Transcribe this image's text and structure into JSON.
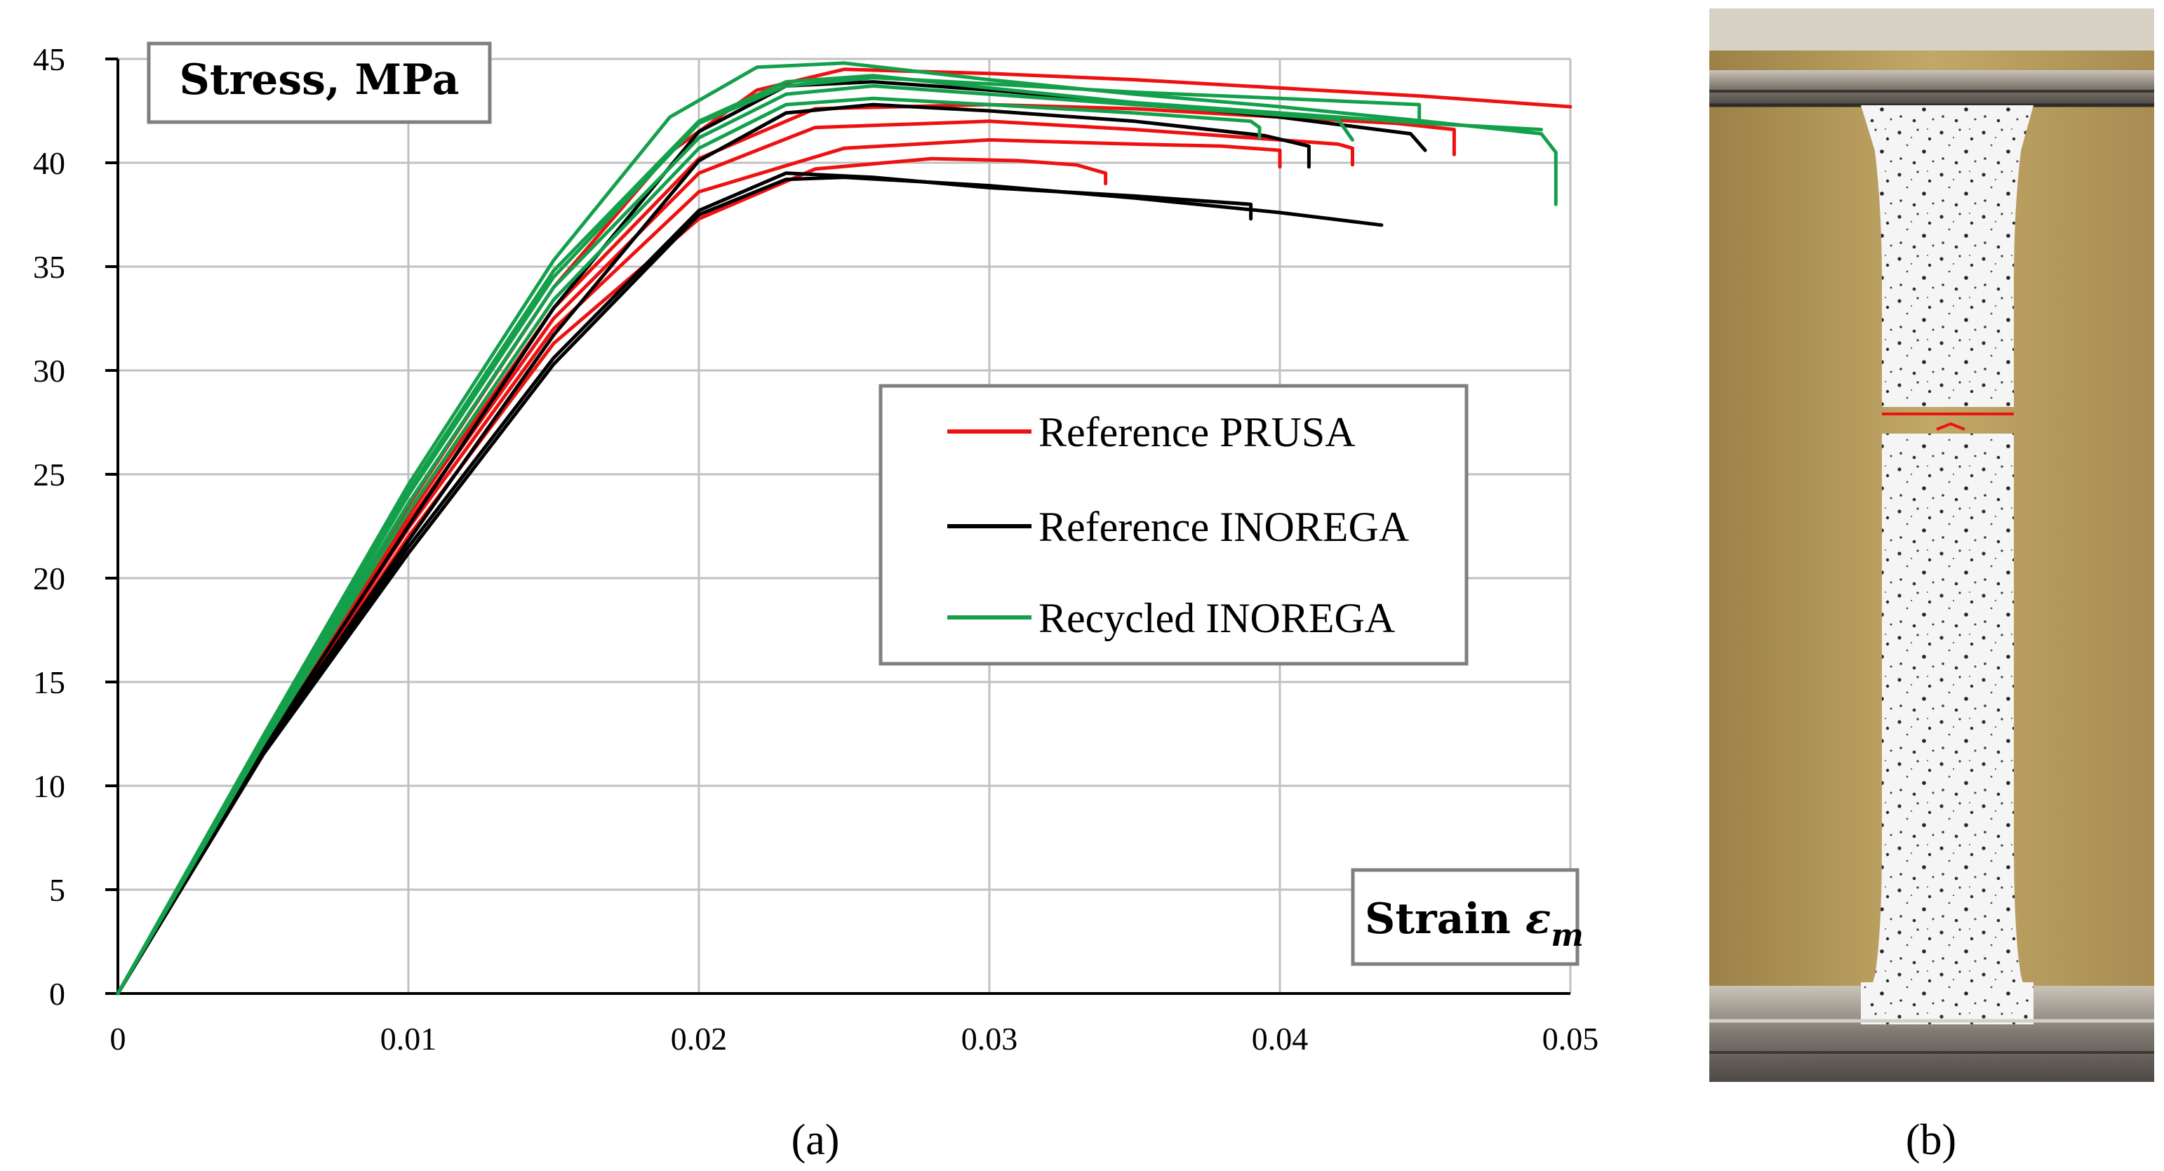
{
  "panel_a_label": "(a)",
  "panel_b_label": "(b)",
  "chart_data": {
    "type": "line",
    "title": "",
    "ylabel": "Stress, MPa",
    "xlabel": "Strain ε_m",
    "xlabel_main": "Strain ",
    "xlabel_symbol": "ε",
    "xlabel_subscript": "m",
    "xlim": [
      0,
      0.05
    ],
    "ylim": [
      0,
      45
    ],
    "xticks": [
      0,
      0.01,
      0.02,
      0.03,
      0.04,
      0.05
    ],
    "xtick_labels": [
      "0",
      "0.01",
      "0.02",
      "0.03",
      "0.04",
      "0.05"
    ],
    "yticks": [
      0,
      5,
      10,
      15,
      20,
      25,
      30,
      35,
      40,
      45
    ],
    "ytick_labels": [
      "0",
      "5",
      "10",
      "15",
      "20",
      "25",
      "30",
      "35",
      "40",
      "45"
    ],
    "grid": true,
    "legend_position": "right-middle",
    "legend": [
      {
        "name": "Reference",
        "name_small_caps": "PRUSA",
        "color": "#ee1111"
      },
      {
        "name": "Reference",
        "name_small_caps": "INOREGA",
        "color": "#000000"
      },
      {
        "name": "Recycled",
        "name_small_caps": "INOREGA",
        "color": "#14a04b"
      }
    ],
    "series": [
      {
        "group": "Reference PRUSA",
        "color": "#ee1111",
        "x": [
          0,
          0.005,
          0.01,
          0.015,
          0.019,
          0.022,
          0.025,
          0.03,
          0.035,
          0.04,
          0.045,
          0.05
        ],
        "y": [
          0,
          12.0,
          23.5,
          34.0,
          40.5,
          43.5,
          44.5,
          44.3,
          44.0,
          43.6,
          43.2,
          42.7
        ]
      },
      {
        "group": "Reference PRUSA",
        "color": "#ee1111",
        "x": [
          0,
          0.005,
          0.01,
          0.015,
          0.02,
          0.024,
          0.03,
          0.035,
          0.04,
          0.044,
          0.046,
          0.046
        ],
        "y": [
          0,
          11.9,
          23.0,
          33.0,
          40.2,
          42.6,
          42.8,
          42.6,
          42.2,
          41.9,
          41.6,
          40.4
        ]
      },
      {
        "group": "Reference PRUSA",
        "color": "#ee1111",
        "x": [
          0,
          0.005,
          0.01,
          0.015,
          0.02,
          0.024,
          0.03,
          0.035,
          0.04,
          0.042,
          0.0425,
          0.0425
        ],
        "y": [
          0,
          11.8,
          22.7,
          32.5,
          39.5,
          41.7,
          42.0,
          41.6,
          41.1,
          40.9,
          40.7,
          39.9
        ]
      },
      {
        "group": "Reference PRUSA",
        "color": "#ee1111",
        "x": [
          0,
          0.005,
          0.01,
          0.015,
          0.02,
          0.025,
          0.03,
          0.035,
          0.038,
          0.04,
          0.04
        ],
        "y": [
          0,
          11.7,
          22.4,
          32.0,
          38.6,
          40.7,
          41.1,
          40.9,
          40.8,
          40.6,
          39.8
        ]
      },
      {
        "group": "Reference PRUSA",
        "color": "#ee1111",
        "x": [
          0,
          0.005,
          0.01,
          0.015,
          0.02,
          0.024,
          0.028,
          0.031,
          0.033,
          0.034,
          0.034
        ],
        "y": [
          0,
          11.6,
          22.0,
          31.3,
          37.3,
          39.7,
          40.2,
          40.1,
          39.9,
          39.5,
          39.0
        ]
      },
      {
        "group": "Reference INOREGA",
        "color": "#000000",
        "x": [
          0,
          0.005,
          0.01,
          0.015,
          0.02,
          0.023,
          0.026,
          0.03,
          0.035,
          0.04,
          0.0445,
          0.045
        ],
        "y": [
          0,
          11.8,
          22.5,
          33.0,
          41.5,
          43.7,
          43.9,
          43.5,
          42.9,
          42.2,
          41.4,
          40.6
        ]
      },
      {
        "group": "Reference INOREGA",
        "color": "#000000",
        "x": [
          0,
          0.005,
          0.01,
          0.015,
          0.02,
          0.023,
          0.026,
          0.03,
          0.035,
          0.0395,
          0.041,
          0.041
        ],
        "y": [
          0,
          11.7,
          21.8,
          31.7,
          40.1,
          42.4,
          42.8,
          42.5,
          42.0,
          41.3,
          40.8,
          39.8
        ]
      },
      {
        "group": "Reference INOREGA",
        "color": "#000000",
        "x": [
          0,
          0.005,
          0.01,
          0.015,
          0.02,
          0.023,
          0.026,
          0.03,
          0.035,
          0.039,
          0.039
        ],
        "y": [
          0,
          11.6,
          21.5,
          30.6,
          37.7,
          39.5,
          39.3,
          38.8,
          38.4,
          38.0,
          37.3
        ]
      },
      {
        "group": "Reference INOREGA",
        "color": "#000000",
        "x": [
          0,
          0.005,
          0.01,
          0.015,
          0.02,
          0.023,
          0.025,
          0.03,
          0.035,
          0.04,
          0.0435
        ],
        "y": [
          0,
          11.5,
          21.2,
          30.3,
          37.5,
          39.2,
          39.3,
          38.9,
          38.3,
          37.6,
          37.0
        ]
      },
      {
        "group": "Recycled INOREGA",
        "color": "#14a04b",
        "x": [
          0,
          0.005,
          0.01,
          0.015,
          0.019,
          0.022,
          0.025,
          0.03,
          0.035,
          0.04,
          0.045,
          0.049,
          0.0495,
          0.0495
        ],
        "y": [
          0,
          12.4,
          24.5,
          35.3,
          42.2,
          44.6,
          44.8,
          44.0,
          43.3,
          42.7,
          42.0,
          41.4,
          40.5,
          38.0
        ]
      },
      {
        "group": "Recycled INOREGA",
        "color": "#14a04b",
        "x": [
          0,
          0.005,
          0.01,
          0.015,
          0.02,
          0.023,
          0.026,
          0.03,
          0.035,
          0.04,
          0.0448,
          0.0448
        ],
        "y": [
          0,
          12.2,
          24.0,
          34.5,
          41.9,
          43.7,
          44.1,
          43.8,
          43.4,
          43.1,
          42.8,
          42.1
        ]
      },
      {
        "group": "Recycled INOREGA",
        "color": "#14a04b",
        "x": [
          0,
          0.005,
          0.01,
          0.015,
          0.02,
          0.023,
          0.026,
          0.03,
          0.035,
          0.04,
          0.042,
          0.0425
        ],
        "y": [
          0,
          12.1,
          23.6,
          34.0,
          41.2,
          43.3,
          43.7,
          43.3,
          42.8,
          42.3,
          42.1,
          41.1
        ]
      },
      {
        "group": "Recycled INOREGA",
        "color": "#14a04b",
        "x": [
          0,
          0.005,
          0.01,
          0.015,
          0.02,
          0.023,
          0.026,
          0.03,
          0.035,
          0.039,
          0.0393,
          0.0393
        ],
        "y": [
          0,
          12.0,
          23.2,
          33.4,
          40.7,
          42.8,
          43.1,
          42.8,
          42.4,
          42.0,
          41.7,
          41.2
        ]
      },
      {
        "group": "Recycled INOREGA",
        "color": "#14a04b",
        "x": [
          0,
          0.005,
          0.01,
          0.015,
          0.02,
          0.023,
          0.026,
          0.03,
          0.035,
          0.04,
          0.045,
          0.049
        ],
        "y": [
          0,
          12.3,
          24.2,
          34.8,
          42.0,
          43.9,
          44.2,
          43.6,
          42.9,
          42.4,
          41.9,
          41.6
        ]
      }
    ]
  },
  "colors": {
    "grid": "#c0c0c0",
    "box_border": "#7f7f7f",
    "photo_background": "#b59a5c",
    "specimen": "#f4f4f4",
    "clamp_metal": "#8a847c",
    "fracture": "#ee1111"
  }
}
